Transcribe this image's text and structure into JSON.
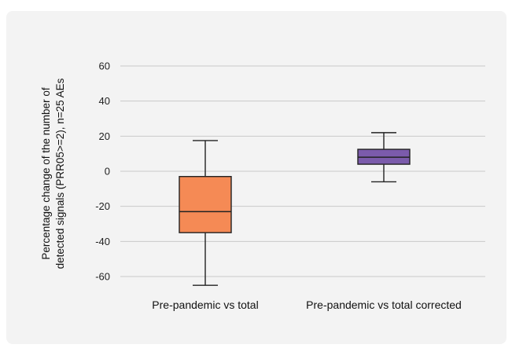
{
  "chart_data": {
    "type": "boxplot",
    "ylabel_line1": "Percentage change of the number of",
    "ylabel_line2": "detected signals (PRR05>=2), n=25 AEs",
    "ylim": [
      -70,
      65
    ],
    "yticks": [
      60,
      40,
      20,
      0,
      -20,
      -40,
      -60
    ],
    "grid": true,
    "series": [
      {
        "category": "Pre-pandemic vs total",
        "color": "#f58a55",
        "whisker_low": -65,
        "q1": -35,
        "median": -23,
        "q3": -3,
        "whisker_high": 17.5
      },
      {
        "category": "Pre-pandemic vs total corrected",
        "color": "#7b5bab",
        "whisker_low": -6,
        "q1": 4,
        "median": 8,
        "q3": 12.5,
        "whisker_high": 22
      }
    ]
  }
}
